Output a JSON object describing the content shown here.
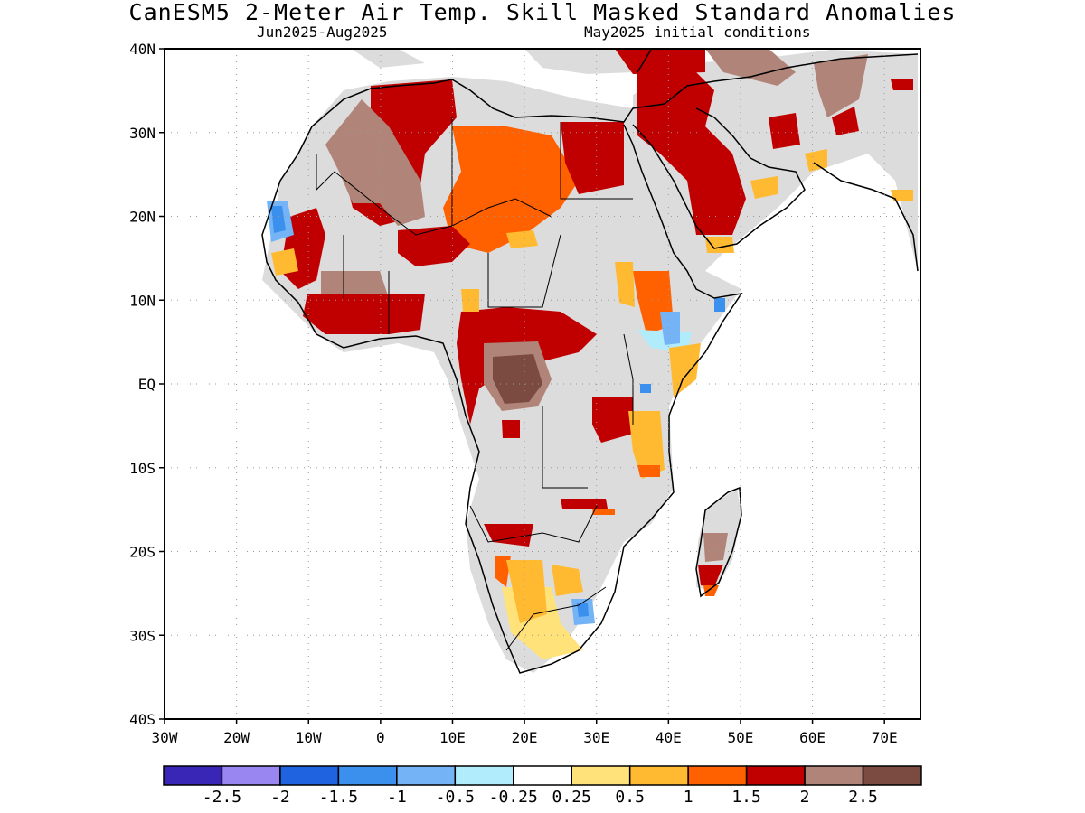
{
  "title": "CanESM5 2-Meter Air Temp. Skill Masked Standard Anomalies",
  "period": "Jun2025-Aug2025",
  "initial_conditions": "May2025 initial conditions",
  "map": {
    "lon_range": [
      -30,
      75
    ],
    "lat_range": [
      -40,
      40
    ],
    "lat_labels": [
      "40N",
      "30N",
      "20N",
      "10N",
      "EQ",
      "10S",
      "20S",
      "30S",
      "40S"
    ],
    "lon_labels": [
      "30W",
      "20W",
      "10W",
      "0",
      "10E",
      "20E",
      "30E",
      "40E",
      "50E",
      "60E",
      "70E"
    ],
    "gridlines": "dotted",
    "masked_color": "#dcdcdc"
  },
  "colorbar": {
    "colors": [
      "#3a26b6",
      "#9a86f0",
      "#1f63e0",
      "#3b90ee",
      "#74b4f6",
      "#b0ecfb",
      "#ffffff",
      "#ffe27a",
      "#ffba32",
      "#ff6000",
      "#c00000",
      "#b08478",
      "#7b4b42"
    ],
    "labels": [
      "-2.5",
      "-2",
      "-1.5",
      "-1",
      "-0.5",
      "-0.25",
      "0.25",
      "0.5",
      "1",
      "1.5",
      "2",
      "2.5"
    ]
  }
}
